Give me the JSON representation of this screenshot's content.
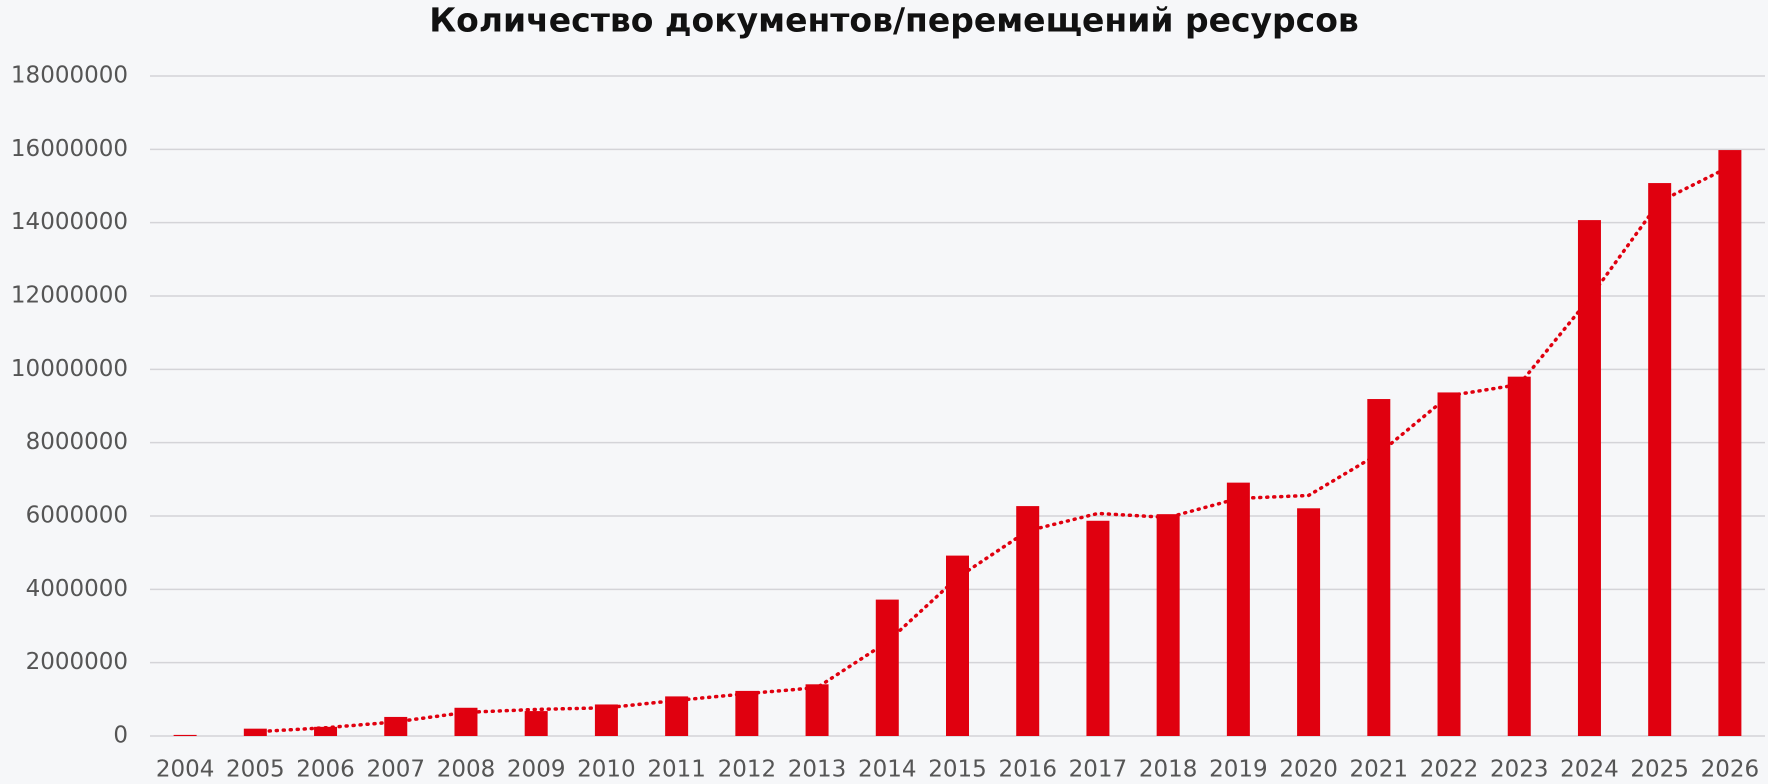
{
  "chart_data": {
    "type": "bar",
    "title": "Количество документов/перемещений ресурсов",
    "categories": [
      "2004",
      "2005",
      "2006",
      "2007",
      "2008",
      "2009",
      "2010",
      "2011",
      "2012",
      "2013",
      "2014",
      "2015",
      "2016",
      "2017",
      "2018",
      "2019",
      "2020",
      "2021",
      "2022",
      "2023",
      "2024",
      "2025",
      "2026"
    ],
    "values": [
      30000,
      200000,
      250000,
      520000,
      770000,
      680000,
      860000,
      1080000,
      1230000,
      1410000,
      3720000,
      4920000,
      6270000,
      5870000,
      6050000,
      6910000,
      6210000,
      9190000,
      9370000,
      9800000,
      14070000,
      15080000,
      15980000
    ],
    "color": "#e0000f",
    "trend": {
      "color": "#e0000f",
      "values": [
        null,
        115000,
        225000,
        385000,
        645000,
        725000,
        770000,
        970000,
        1155000,
        1320000,
        2565000,
        4320000,
        5595000,
        6070000,
        5960000,
        6480000,
        6560000,
        7700000,
        9280000,
        9585000,
        11935000,
        14575000,
        15530000
      ]
    },
    "ylim": [
      0,
      18000000
    ],
    "yticks": [
      0,
      2000000,
      4000000,
      6000000,
      8000000,
      10000000,
      12000000,
      14000000,
      16000000,
      18000000
    ],
    "grid": true
  }
}
